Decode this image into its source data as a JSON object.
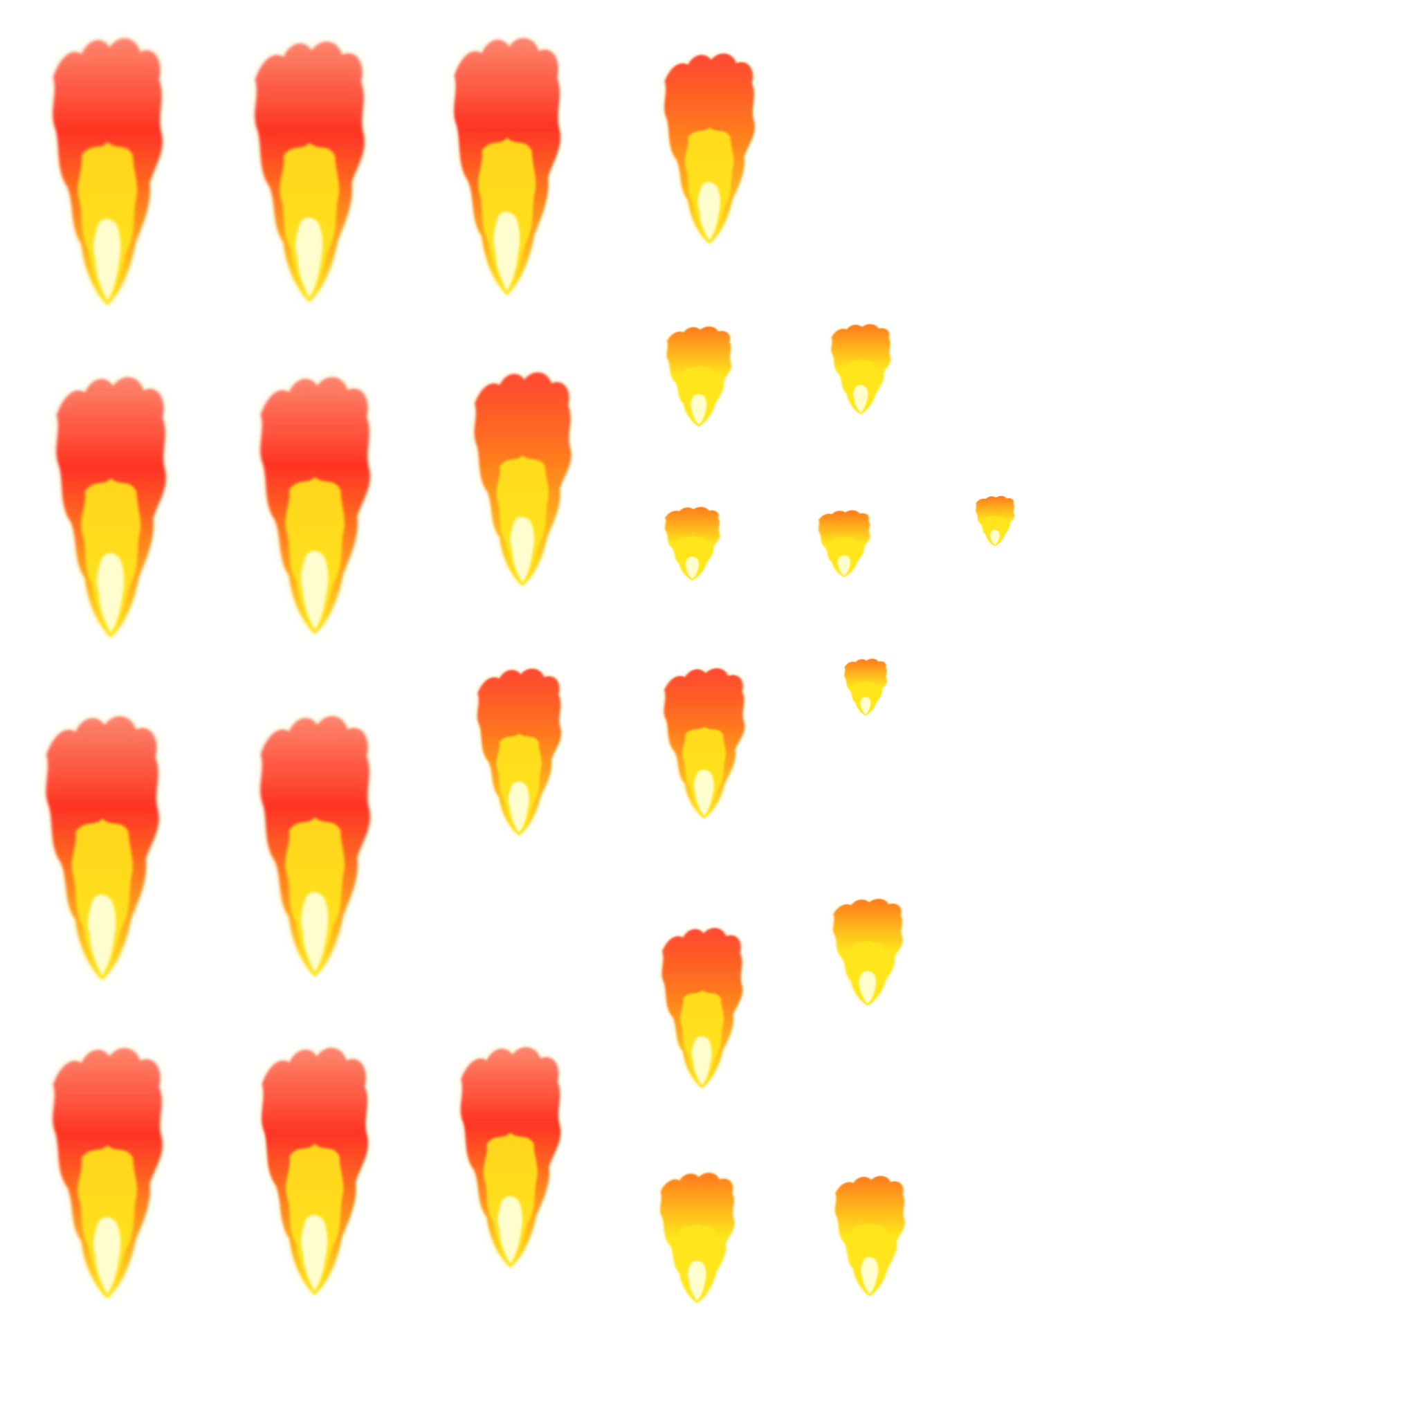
{
  "sprite_sheet": {
    "background": "#ffffff",
    "colors": {
      "outer_red": "#ff2a1a",
      "mid_orange": "#ff7a1a",
      "inner_yellow": "#ffe61a",
      "core_white": "#ffffd8",
      "glow_yellow": "#f4f0a0"
    },
    "frames": [
      {
        "id": 1,
        "kind": "tall-flame"
      },
      {
        "id": 2,
        "kind": "tall-flame"
      },
      {
        "id": 3,
        "kind": "tall-flame"
      },
      {
        "id": 4,
        "kind": "medium-flame"
      },
      {
        "id": 5,
        "kind": "tall-flame"
      },
      {
        "id": 6,
        "kind": "tall-flame"
      },
      {
        "id": 7,
        "kind": "medium-flame"
      },
      {
        "id": 8,
        "kind": "small-flame"
      },
      {
        "id": 9,
        "kind": "small-flame"
      },
      {
        "id": 10,
        "kind": "small-flame"
      },
      {
        "id": 11,
        "kind": "small-flame"
      },
      {
        "id": 12,
        "kind": "tiny-flame"
      },
      {
        "id": 13,
        "kind": "tall-flame"
      },
      {
        "id": 14,
        "kind": "tall-flame"
      },
      {
        "id": 15,
        "kind": "medium-flame"
      },
      {
        "id": 16,
        "kind": "medium-flame"
      },
      {
        "id": 17,
        "kind": "tiny-flame"
      },
      {
        "id": 18,
        "kind": "medium-flame"
      },
      {
        "id": 19,
        "kind": "small-flame"
      },
      {
        "id": 20,
        "kind": "tall-flame"
      },
      {
        "id": 21,
        "kind": "tall-flame"
      },
      {
        "id": 22,
        "kind": "tall-flame"
      },
      {
        "id": 23,
        "kind": "small-flame"
      },
      {
        "id": 24,
        "kind": "small-flame"
      }
    ]
  }
}
